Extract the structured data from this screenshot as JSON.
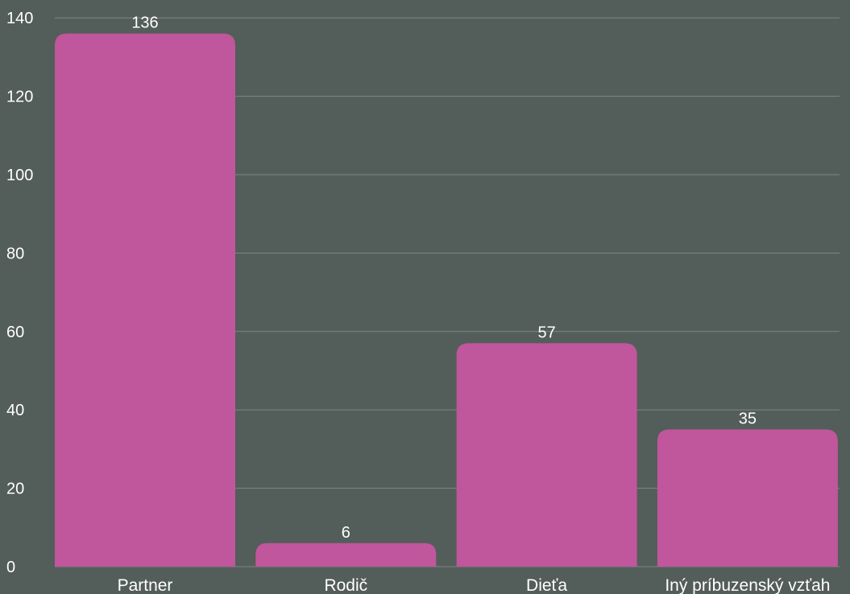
{
  "colors": {
    "background": "#535d59",
    "bar": "#c0569c",
    "gridline": "#7d8783",
    "text": "#ffffff"
  },
  "chart_data": {
    "type": "bar",
    "categories": [
      "Partner",
      "Rodič",
      "Dieťa",
      "Iný príbuzenský vzťah"
    ],
    "values": [
      136,
      6,
      57,
      35
    ],
    "data_labels": [
      "136",
      "6",
      "57",
      "35"
    ],
    "yticks": [
      0,
      20,
      40,
      60,
      80,
      100,
      120,
      140
    ],
    "ylim": [
      0,
      140
    ],
    "grid": true,
    "legend": "none",
    "title": "",
    "xlabel": "",
    "ylabel": ""
  }
}
